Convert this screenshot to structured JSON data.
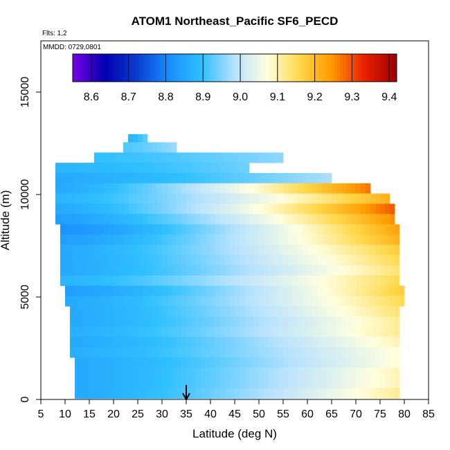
{
  "chart_data": {
    "type": "heatmap",
    "title": "ATOM1 Northeast_Pacific SF6_PECD",
    "flights_label": "Flts: 1,2",
    "dates_label": "MMDD: 0729,0801",
    "xlabel": "Latitude (deg N)",
    "ylabel": "Altitude (m)",
    "xlim": [
      5,
      85
    ],
    "ylim": [
      0,
      17500
    ],
    "x_ticks": [
      5,
      10,
      15,
      20,
      25,
      30,
      35,
      40,
      45,
      50,
      55,
      60,
      65,
      70,
      75,
      80,
      85
    ],
    "y_ticks": [
      0,
      5000,
      10000,
      15000
    ],
    "colorbar": {
      "min": 8.55,
      "max": 9.42,
      "ticks": [
        8.6,
        8.7,
        8.8,
        8.9,
        9.0,
        9.1,
        9.2,
        9.3,
        9.4
      ],
      "colors": [
        "#7a00e6",
        "#0000b0",
        "#0a3fd0",
        "#1a8fff",
        "#2fc0ff",
        "#b8e2ff",
        "#ffffe0",
        "#ffd84a",
        "#ff9a00",
        "#e82000",
        "#9e0000"
      ]
    },
    "arrow_latitude": 35,
    "layers": [
      {
        "alt": 12700,
        "x0": 23,
        "x1": 27,
        "v0": 8.88,
        "v1": 8.95
      },
      {
        "alt": 12300,
        "x0": 22,
        "x1": 33,
        "v0": 8.92,
        "v1": 8.97
      },
      {
        "alt": 11800,
        "x0": 16,
        "x1": 55,
        "v0": 8.9,
        "v1": 8.96
      },
      {
        "alt": 11300,
        "x0": 8,
        "x1": 48,
        "v0": 8.88,
        "v1": 8.94
      },
      {
        "alt": 10800,
        "x0": 8,
        "x1": 65,
        "v0": 8.86,
        "v1": 8.98
      },
      {
        "alt": 10300,
        "x0": 8,
        "x1": 73,
        "v0": 8.86,
        "v1": 9.28
      },
      {
        "alt": 9800,
        "x0": 8,
        "x1": 77,
        "v0": 8.88,
        "v1": 9.22
      },
      {
        "alt": 9300,
        "x0": 8,
        "x1": 78,
        "v0": 8.86,
        "v1": 9.3
      },
      {
        "alt": 8800,
        "x0": 8,
        "x1": 78,
        "v0": 8.84,
        "v1": 9.26
      },
      {
        "alt": 8300,
        "x0": 9,
        "x1": 79,
        "v0": 8.82,
        "v1": 9.24
      },
      {
        "alt": 7800,
        "x0": 9,
        "x1": 79,
        "v0": 8.84,
        "v1": 9.22
      },
      {
        "alt": 7300,
        "x0": 9,
        "x1": 79,
        "v0": 8.86,
        "v1": 9.18
      },
      {
        "alt": 6800,
        "x0": 9,
        "x1": 79,
        "v0": 8.86,
        "v1": 9.16
      },
      {
        "alt": 6300,
        "x0": 9,
        "x1": 79,
        "v0": 8.86,
        "v1": 9.14
      },
      {
        "alt": 5800,
        "x0": 9,
        "x1": 79,
        "v0": 8.88,
        "v1": 9.16
      },
      {
        "alt": 5300,
        "x0": 10,
        "x1": 80,
        "v0": 8.84,
        "v1": 9.18
      },
      {
        "alt": 4800,
        "x0": 10,
        "x1": 80,
        "v0": 8.86,
        "v1": 9.16
      },
      {
        "alt": 4300,
        "x0": 11,
        "x1": 79,
        "v0": 8.86,
        "v1": 9.14
      },
      {
        "alt": 3800,
        "x0": 11,
        "x1": 79,
        "v0": 8.86,
        "v1": 9.12
      },
      {
        "alt": 3300,
        "x0": 11,
        "x1": 79,
        "v0": 8.87,
        "v1": 9.12
      },
      {
        "alt": 2800,
        "x0": 11,
        "x1": 79,
        "v0": 8.86,
        "v1": 9.1
      },
      {
        "alt": 2300,
        "x0": 11,
        "x1": 79,
        "v0": 8.87,
        "v1": 9.08
      },
      {
        "alt": 1800,
        "x0": 12,
        "x1": 79,
        "v0": 8.86,
        "v1": 9.08
      },
      {
        "alt": 1300,
        "x0": 12,
        "x1": 79,
        "v0": 8.86,
        "v1": 9.1
      },
      {
        "alt": 800,
        "x0": 12,
        "x1": 79,
        "v0": 8.86,
        "v1": 9.1
      },
      {
        "alt": 300,
        "x0": 12,
        "x1": 79,
        "v0": 8.86,
        "v1": 9.12
      }
    ]
  }
}
